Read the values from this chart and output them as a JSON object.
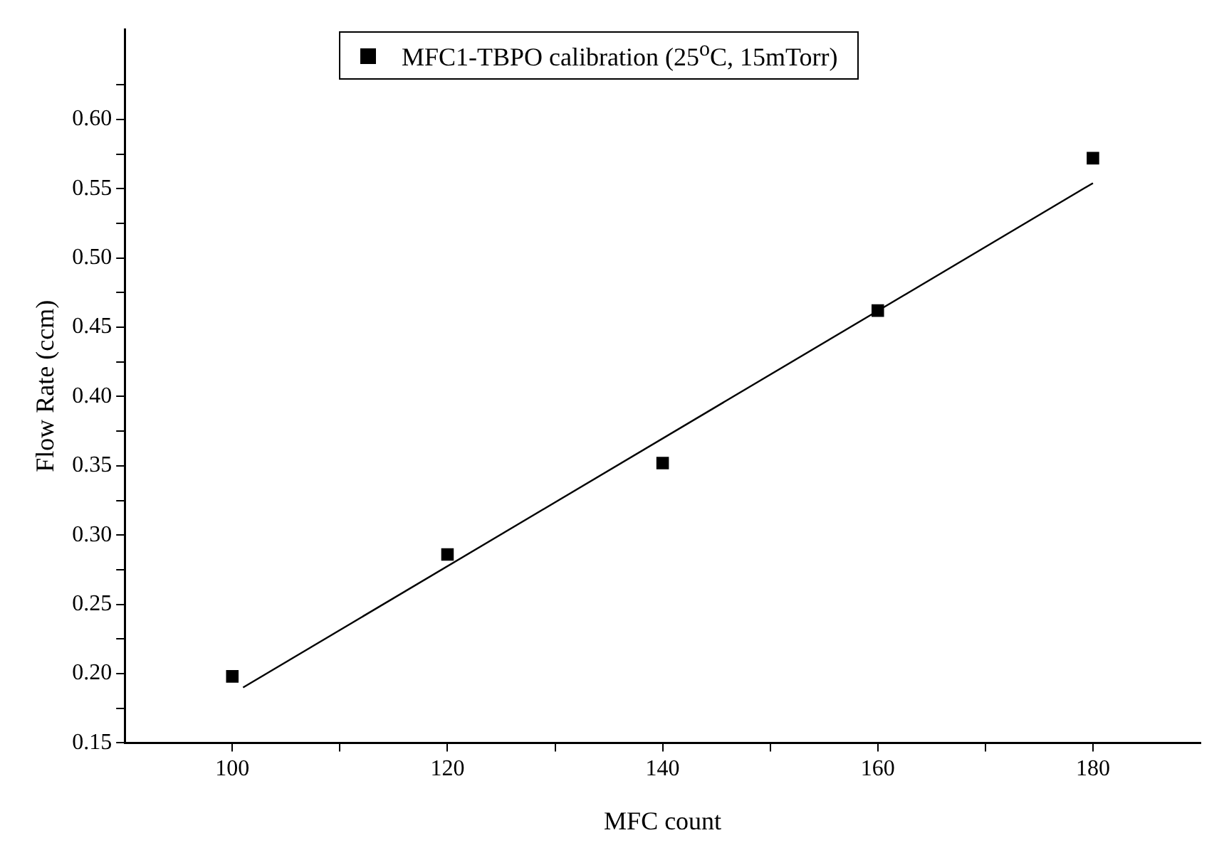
{
  "chart_data": {
    "type": "scatter",
    "xlabel": "MFC count",
    "ylabel": "Flow Rate (ccm)",
    "series": [
      {
        "name": "MFC1-TBPO calibration (25$^{o}$C, 15mTorr)",
        "color": "#000000",
        "x": [
          100,
          120,
          140,
          160,
          180
        ],
        "values": [
          0.198,
          0.286,
          0.352,
          0.462,
          0.572
        ],
        "marker": "square"
      },
      {
        "type": "line",
        "color": "#000000",
        "x": [
          101,
          180
        ],
        "values": [
          0.19,
          0.554
        ],
        "marker": "none",
        "line_style": "solid"
      }
    ],
    "xlim": [
      90,
      190
    ],
    "xticks": [
      100,
      {
        "value": 110,
        "label": null
      },
      120,
      {
        "value": 130,
        "label": null
      },
      140,
      {
        "value": 150,
        "label": null
      },
      160,
      {
        "value": 170,
        "label": null
      },
      180
    ],
    "ylim": [
      0.15,
      0.665
    ],
    "yticks": [
      {
        "value": 0.15,
        "label": "0.15"
      },
      {
        "value": 0.175,
        "label": null
      },
      {
        "value": 0.2,
        "label": "0.20"
      },
      {
        "value": 0.225,
        "label": null
      },
      {
        "value": 0.25,
        "label": "0.25"
      },
      {
        "value": 0.275,
        "label": null
      },
      {
        "value": 0.3,
        "label": "0.30"
      },
      {
        "value": 0.325,
        "label": null
      },
      {
        "value": 0.35,
        "label": "0.35"
      },
      {
        "value": 0.375,
        "label": null
      },
      {
        "value": 0.4,
        "label": "0.40"
      },
      {
        "value": 0.425,
        "label": null
      },
      {
        "value": 0.45,
        "label": "0.45"
      },
      {
        "value": 0.475,
        "label": null
      },
      {
        "value": 0.5,
        "label": "0.50"
      },
      {
        "value": 0.525,
        "label": null
      },
      {
        "value": 0.55,
        "label": "0.55"
      },
      {
        "value": 0.575,
        "label": null
      },
      {
        "value": 0.6,
        "label": "0.60"
      },
      {
        "value": 0.625,
        "label": null
      }
    ],
    "grid": false,
    "legend": "top"
  }
}
